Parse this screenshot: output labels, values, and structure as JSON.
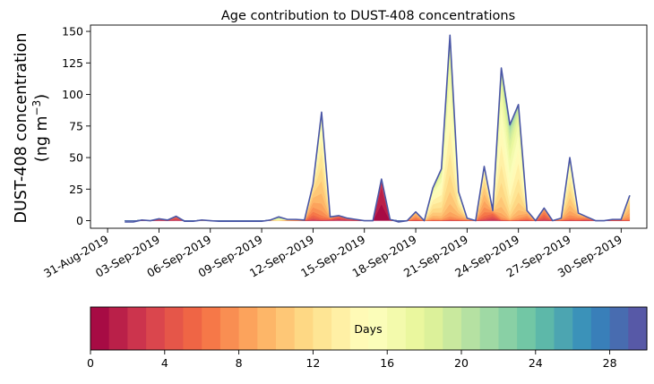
{
  "chart_data": {
    "type": "area",
    "title": "Age contribution to DUST-408 concentrations",
    "ylabel_line1": "DUST-408 concentration",
    "ylabel_line2_prefix": "(ng m",
    "ylabel_line2_sup": "−3",
    "ylabel_line2_suffix": ")",
    "xlim_days": [
      -1,
      31.5
    ],
    "ylim": [
      -6,
      155
    ],
    "yticks": [
      0,
      25,
      50,
      75,
      100,
      125,
      150
    ],
    "xtick_labels": [
      "31-Aug-2019",
      "03-Sep-2019",
      "06-Sep-2019",
      "09-Sep-2019",
      "12-Sep-2019",
      "15-Sep-2019",
      "18-Sep-2019",
      "21-Sep-2019",
      "24-Sep-2019",
      "27-Sep-2019",
      "30-Sep-2019"
    ],
    "xtick_days": [
      0,
      3,
      6,
      9,
      12,
      15,
      18,
      21,
      24,
      27,
      30
    ],
    "x_days": [
      1,
      1.5,
      2,
      2.5,
      3,
      3.5,
      4,
      4.5,
      5,
      5.5,
      6,
      6.5,
      7,
      7.5,
      8,
      8.5,
      9,
      9.5,
      10,
      10.5,
      11,
      11.5,
      12,
      12.5,
      13,
      13.5,
      14,
      14.5,
      15,
      15.5,
      16,
      16.5,
      17,
      17.5,
      18,
      18.5,
      19,
      19.5,
      20,
      20.5,
      21,
      21.5,
      22,
      22.5,
      23,
      23.5,
      24,
      24.5,
      25,
      25.5,
      26,
      26.5,
      27,
      27.5,
      28,
      28.5,
      29,
      29.5,
      30,
      30.5
    ],
    "total": [
      -1,
      -1,
      0.5,
      0,
      1.5,
      0.5,
      3.5,
      -0.5,
      -0.5,
      0.5,
      0,
      -0.5,
      -0.5,
      -0.5,
      -0.5,
      -0.5,
      -0.5,
      0.5,
      3,
      1,
      1,
      0.5,
      29,
      86,
      3,
      4,
      2,
      1,
      0,
      0,
      33,
      1,
      -1,
      0,
      7,
      0,
      26,
      41,
      147,
      23,
      2,
      0,
      43,
      8,
      121,
      76,
      92,
      8,
      0,
      10,
      0,
      2,
      50,
      6,
      3,
      0,
      0,
      1,
      1,
      20
    ],
    "base_weighted_age": [
      15,
      15,
      5,
      5,
      4,
      5,
      4,
      12,
      12,
      12,
      12,
      12,
      12,
      12,
      12,
      12,
      12,
      12,
      18,
      12,
      10,
      10,
      9,
      12,
      6,
      4,
      4,
      5,
      5,
      5,
      1,
      6,
      6,
      8,
      8,
      12,
      13,
      14,
      14,
      12,
      8,
      8,
      10,
      5,
      14,
      16,
      14,
      8,
      8,
      6,
      6,
      8,
      12,
      8,
      6,
      6,
      8,
      6,
      6,
      10
    ],
    "spread_weighted_age": [
      2,
      2,
      2,
      2,
      2,
      2,
      2,
      3,
      3,
      3,
      3,
      3,
      3,
      3,
      3,
      3,
      3,
      3,
      3,
      3,
      3,
      3,
      3,
      3,
      3,
      2,
      2,
      2,
      2,
      2,
      1,
      2,
      2,
      2,
      2,
      2,
      3,
      3,
      3,
      3,
      2,
      2,
      3,
      2,
      3,
      3,
      3,
      2,
      2,
      2,
      2,
      2,
      3,
      2,
      2,
      2,
      2,
      2,
      2,
      2
    ],
    "line_color": "#4a56a6",
    "colorbar": {
      "label": "Days",
      "min": 0,
      "max": 30,
      "ticks": [
        0,
        4,
        8,
        12,
        16,
        20,
        24,
        28
      ],
      "n_bins": 30,
      "colormap_stops": [
        "#9e0142",
        "#d53e4f",
        "#f46d43",
        "#fdae61",
        "#fee08b",
        "#ffffbf",
        "#e6f598",
        "#abdda4",
        "#66c2a5",
        "#3288bd",
        "#5e4fa2"
      ]
    }
  }
}
